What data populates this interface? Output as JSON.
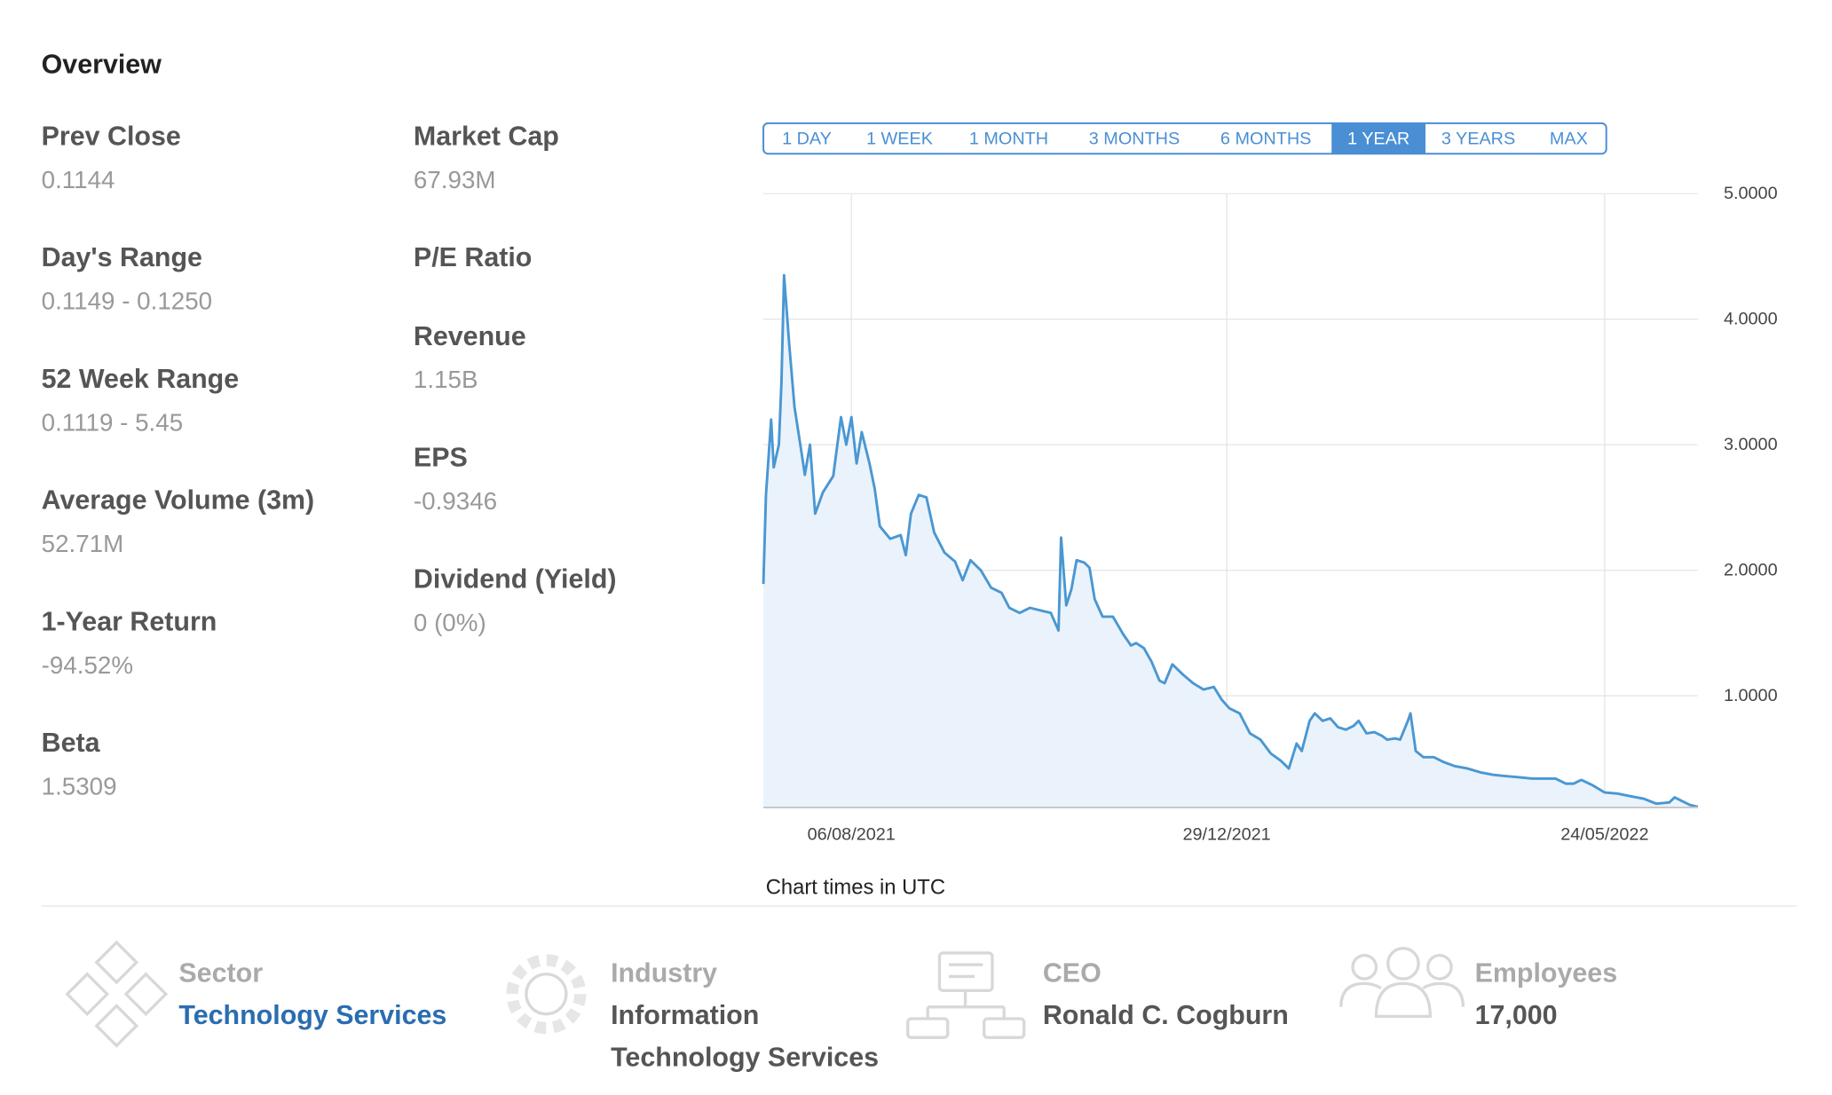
{
  "header": {
    "title": "Overview"
  },
  "stats": {
    "columns": [
      [
        {
          "label": "Prev Close",
          "value": "0.1144"
        },
        {
          "label": "Day's Range",
          "value": "0.1149 - 0.1250"
        },
        {
          "label": "52 Week Range",
          "value": "0.1119 - 5.45"
        },
        {
          "label": "Average Volume (3m)",
          "value": "52.71M"
        },
        {
          "label": "1-Year Return",
          "value": "-94.52%"
        },
        {
          "label": "Beta",
          "value": "1.5309"
        }
      ],
      [
        {
          "label": "Market Cap",
          "value": "67.93M"
        },
        {
          "label": "P/E Ratio"
        },
        {
          "label": "Revenue",
          "value": "1.15B"
        },
        {
          "label": "EPS",
          "value": "-0.9346"
        },
        {
          "label": "Dividend (Yield)",
          "value": "0 (0%)"
        }
      ]
    ]
  },
  "range_buttons": [
    {
      "label": "1 DAY"
    },
    {
      "label": "1 WEEK"
    },
    {
      "label": "1 MONTH"
    },
    {
      "label": "3 MONTHS"
    },
    {
      "label": "6 MONTHS"
    },
    {
      "label": "1 YEAR",
      "selected": true
    },
    {
      "label": "3 YEARS"
    },
    {
      "label": "MAX"
    }
  ],
  "chart_data": {
    "type": "area",
    "color": "#4a97d2",
    "fill_color": "#eaf3fb",
    "grid": true,
    "note": "Chart times in UTC",
    "x": [
      "2021-07-03",
      "2021-07-04",
      "2021-07-06",
      "2021-07-07",
      "2021-07-09",
      "2021-07-10",
      "2021-07-11",
      "2021-07-13",
      "2021-07-15",
      "2021-07-18",
      "2021-07-19",
      "2021-07-21",
      "2021-07-23",
      "2021-07-26",
      "2021-07-30",
      "2021-08-02",
      "2021-08-04",
      "2021-08-06",
      "2021-08-08",
      "2021-08-10",
      "2021-08-13",
      "2021-08-15",
      "2021-08-17",
      "2021-08-21",
      "2021-08-25",
      "2021-08-27",
      "2021-08-29",
      "2021-09-01",
      "2021-09-04",
      "2021-09-07",
      "2021-09-11",
      "2021-09-15",
      "2021-09-18",
      "2021-09-21",
      "2021-09-25",
      "2021-09-29",
      "2021-10-03",
      "2021-10-06",
      "2021-10-10",
      "2021-10-14",
      "2021-10-18",
      "2021-10-22",
      "2021-10-25",
      "2021-10-26",
      "2021-10-28",
      "2021-10-30",
      "2021-11-01",
      "2021-11-04",
      "2021-11-06",
      "2021-11-08",
      "2021-11-11",
      "2021-11-15",
      "2021-11-19",
      "2021-11-22",
      "2021-11-24",
      "2021-11-27",
      "2021-11-30",
      "2021-12-03",
      "2021-12-05",
      "2021-12-08",
      "2021-12-12",
      "2021-12-16",
      "2021-12-20",
      "2021-12-24",
      "2021-12-27",
      "2021-12-30",
      "2022-01-03",
      "2022-01-07",
      "2022-01-11",
      "2022-01-15",
      "2022-01-19",
      "2022-01-22",
      "2022-01-25",
      "2022-01-27",
      "2022-01-30",
      "2022-02-01",
      "2022-02-04",
      "2022-02-07",
      "2022-02-10",
      "2022-02-13",
      "2022-02-16",
      "2022-02-18",
      "2022-02-21",
      "2022-02-24",
      "2022-02-27",
      "2022-03-01",
      "2022-03-04",
      "2022-03-06",
      "2022-03-09",
      "2022-03-10",
      "2022-03-12",
      "2022-03-15",
      "2022-03-19",
      "2022-03-23",
      "2022-03-27",
      "2022-04-01",
      "2022-04-06",
      "2022-04-11",
      "2022-04-16",
      "2022-04-21",
      "2022-04-26",
      "2022-05-01",
      "2022-05-05",
      "2022-05-09",
      "2022-05-12",
      "2022-05-15",
      "2022-05-19",
      "2022-05-24",
      "2022-05-29",
      "2022-06-03",
      "2022-06-08",
      "2022-06-13",
      "2022-06-18",
      "2022-06-20",
      "2022-06-23",
      "2022-06-26",
      "2022-06-29"
    ],
    "values": [
      1.89,
      2.6,
      3.2,
      2.82,
      3.0,
      3.5,
      4.35,
      3.8,
      3.3,
      2.9,
      2.76,
      3.0,
      2.45,
      2.62,
      2.75,
      3.22,
      3.0,
      3.22,
      2.85,
      3.1,
      2.85,
      2.65,
      2.35,
      2.25,
      2.28,
      2.12,
      2.45,
      2.6,
      2.58,
      2.3,
      2.14,
      2.07,
      1.92,
      2.08,
      2.0,
      1.86,
      1.82,
      1.7,
      1.66,
      1.7,
      1.68,
      1.66,
      1.52,
      2.26,
      1.72,
      1.85,
      2.08,
      2.06,
      2.02,
      1.77,
      1.63,
      1.63,
      1.49,
      1.4,
      1.42,
      1.38,
      1.27,
      1.12,
      1.1,
      1.25,
      1.17,
      1.1,
      1.05,
      1.07,
      0.97,
      0.9,
      0.86,
      0.7,
      0.65,
      0.54,
      0.48,
      0.42,
      0.62,
      0.56,
      0.8,
      0.86,
      0.8,
      0.82,
      0.75,
      0.73,
      0.76,
      0.8,
      0.7,
      0.71,
      0.68,
      0.65,
      0.66,
      0.65,
      0.8,
      0.86,
      0.56,
      0.51,
      0.51,
      0.47,
      0.44,
      0.42,
      0.39,
      0.37,
      0.36,
      0.35,
      0.34,
      0.34,
      0.34,
      0.3,
      0.3,
      0.33,
      0.29,
      0.23,
      0.22,
      0.2,
      0.18,
      0.14,
      0.15,
      0.19,
      0.16,
      0.13,
      0.1144
    ],
    "xlim": [
      "2021-07-03",
      "2022-06-29"
    ],
    "xticks": [
      {
        "value": "2021-08-06",
        "label": "06/08/2021"
      },
      {
        "value": "2021-12-29",
        "label": "29/12/2021"
      },
      {
        "value": "2022-05-24",
        "label": "24/05/2022"
      }
    ],
    "ylim": [
      0.11,
      5
    ],
    "yticks": [
      {
        "value": 1,
        "label": "1.0000"
      },
      {
        "value": 2,
        "label": "2.0000"
      },
      {
        "value": 3,
        "label": "3.0000"
      },
      {
        "value": 4,
        "label": "4.0000"
      },
      {
        "value": 5,
        "label": "5.0000"
      }
    ]
  },
  "profile": [
    {
      "label": "Sector",
      "value": "Technology Services",
      "link": true
    },
    {
      "label": "Industry",
      "value": "Information Technology Services"
    },
    {
      "label": "CEO",
      "value": "Ronald C. Cogburn"
    },
    {
      "label": "Employees",
      "value": "17,000"
    }
  ]
}
